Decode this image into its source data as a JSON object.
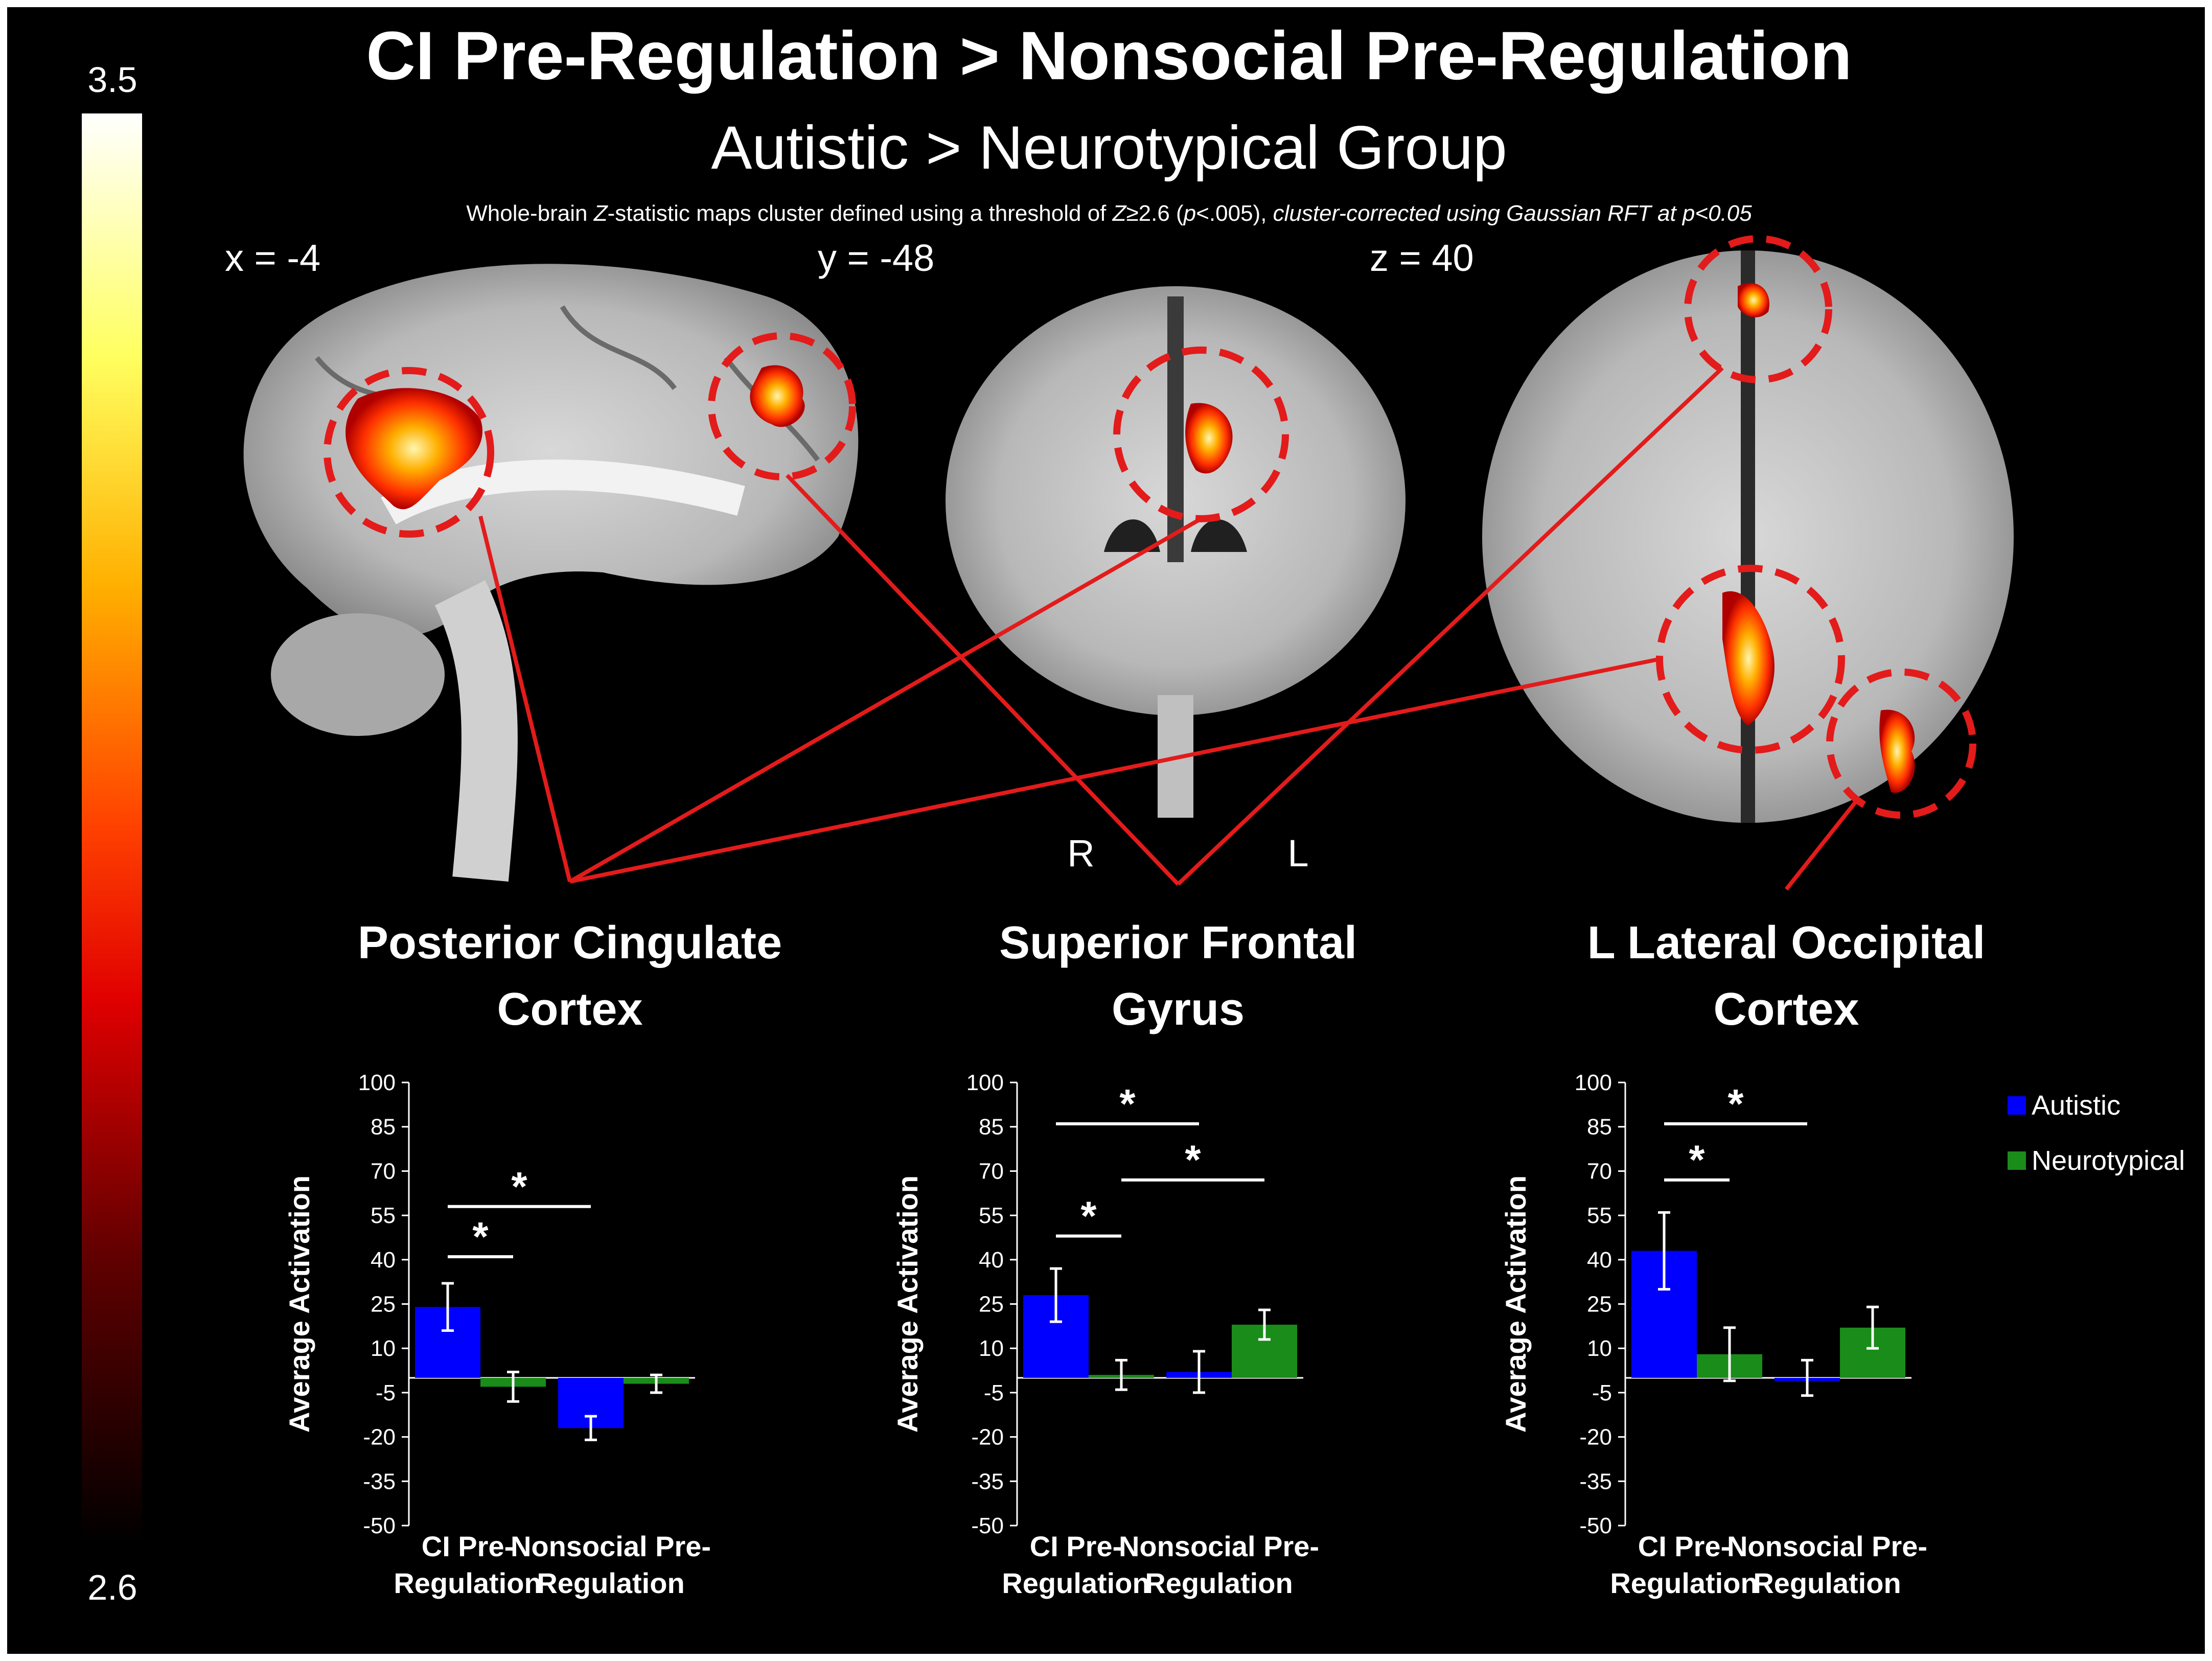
{
  "figure": {
    "title": "CI Pre-Regulation > Nonsocial Pre-Regulation",
    "subtitle": "Autistic > Neurotypical Group",
    "caption_parts": [
      {
        "text": "Whole-brain ",
        "italic": false
      },
      {
        "text": "Z",
        "italic": true
      },
      {
        "text": "-statistic maps cluster defined using a threshold of ",
        "italic": false
      },
      {
        "text": "Z",
        "italic": true
      },
      {
        "text": "≥2.6 (",
        "italic": false
      },
      {
        "text": "p",
        "italic": true
      },
      {
        "text": "<.005), ",
        "italic": false
      },
      {
        "text": "cluster-corrected using Gaussian RFT at p<0.05",
        "italic": true
      }
    ],
    "coords": [
      "x = -4",
      "y = -48",
      "z = 40"
    ],
    "orientation_labels": [
      "R",
      "L"
    ]
  },
  "colorbar": {
    "max_label": "3.5",
    "min_label": "2.6",
    "colors": [
      "#ffffff",
      "#ffff60",
      "#ffb000",
      "#ff4000",
      "#e00000",
      "#600000",
      "#000000"
    ]
  },
  "colors": {
    "autistic": "#0000ff",
    "neurotypical": "#1a8c1a",
    "highlight": "#e31b1b",
    "background": "#000000"
  },
  "regions": [
    {
      "title_lines": [
        "Posterior Cingulate",
        "Cortex"
      ]
    },
    {
      "title_lines": [
        "Superior Frontal",
        "Gyrus"
      ]
    },
    {
      "title_lines": [
        "L Lateral Occipital",
        "Cortex"
      ]
    }
  ],
  "chart_data": [
    {
      "type": "bar",
      "title": "Posterior Cingulate Cortex",
      "ylabel": "Average Activation",
      "categories": [
        "CI Pre-Regulation",
        "Nonsocial Pre-Regulation"
      ],
      "category_lines": [
        [
          "CI Pre-",
          "Regulation"
        ],
        [
          "Nonsocial Pre-",
          "Regulation"
        ]
      ],
      "ylim": [
        -50,
        100
      ],
      "yticks": [
        100,
        85,
        70,
        55,
        40,
        25,
        10,
        -5,
        -20,
        -35,
        -50
      ],
      "series": [
        {
          "name": "Autistic",
          "values": [
            24,
            -17
          ],
          "errors": [
            8,
            4
          ]
        },
        {
          "name": "Neurotypical",
          "values": [
            -3,
            -2
          ],
          "errors": [
            5,
            3
          ]
        }
      ],
      "significance": [
        {
          "label": "*",
          "from": [
            0,
            0
          ],
          "to": [
            0,
            1
          ],
          "y": 41
        },
        {
          "label": "*",
          "from": [
            0,
            0
          ],
          "to": [
            1,
            0
          ],
          "y": 58
        }
      ]
    },
    {
      "type": "bar",
      "title": "Superior Frontal Gyrus",
      "ylabel": "Average Activation",
      "categories": [
        "CI Pre-Regulation",
        "Nonsocial Pre-Regulation"
      ],
      "category_lines": [
        [
          "CI Pre-",
          "Regulation"
        ],
        [
          "Nonsocial Pre-",
          "Regulation"
        ]
      ],
      "ylim": [
        -50,
        100
      ],
      "yticks": [
        100,
        85,
        70,
        55,
        40,
        25,
        10,
        -5,
        -20,
        -35,
        -50
      ],
      "series": [
        {
          "name": "Autistic",
          "values": [
            28,
            2
          ],
          "errors": [
            9,
            7
          ]
        },
        {
          "name": "Neurotypical",
          "values": [
            1,
            18
          ],
          "errors": [
            5,
            5
          ]
        }
      ],
      "significance": [
        {
          "label": "*",
          "from": [
            0,
            0
          ],
          "to": [
            0,
            1
          ],
          "y": 48
        },
        {
          "label": "*",
          "from": [
            0,
            1
          ],
          "to": [
            1,
            1
          ],
          "y": 67
        },
        {
          "label": "*",
          "from": [
            0,
            0
          ],
          "to": [
            1,
            0
          ],
          "y": 86
        }
      ]
    },
    {
      "type": "bar",
      "title": "L Lateral Occipital Cortex",
      "ylabel": "Average Activation",
      "categories": [
        "CI Pre-Regulation",
        "Nonsocial Pre-Regulation"
      ],
      "category_lines": [
        [
          "CI Pre-",
          "Regulation"
        ],
        [
          "Nonsocial Pre-",
          "Regulation"
        ]
      ],
      "ylim": [
        -50,
        100
      ],
      "yticks": [
        100,
        85,
        70,
        55,
        40,
        25,
        10,
        -5,
        -20,
        -35,
        -50
      ],
      "series": [
        {
          "name": "Autistic",
          "values": [
            43,
            0
          ],
          "errors": [
            13,
            6
          ]
        },
        {
          "name": "Neurotypical",
          "values": [
            8,
            17
          ],
          "errors": [
            9,
            7
          ]
        }
      ],
      "legend": [
        "Autistic",
        "Neurotypical"
      ],
      "legend_position": "top-right",
      "significance": [
        {
          "label": "*",
          "from": [
            0,
            0
          ],
          "to": [
            0,
            1
          ],
          "y": 67
        },
        {
          "label": "*",
          "from": [
            0,
            0
          ],
          "to": [
            1,
            0
          ],
          "y": 86
        }
      ]
    }
  ]
}
